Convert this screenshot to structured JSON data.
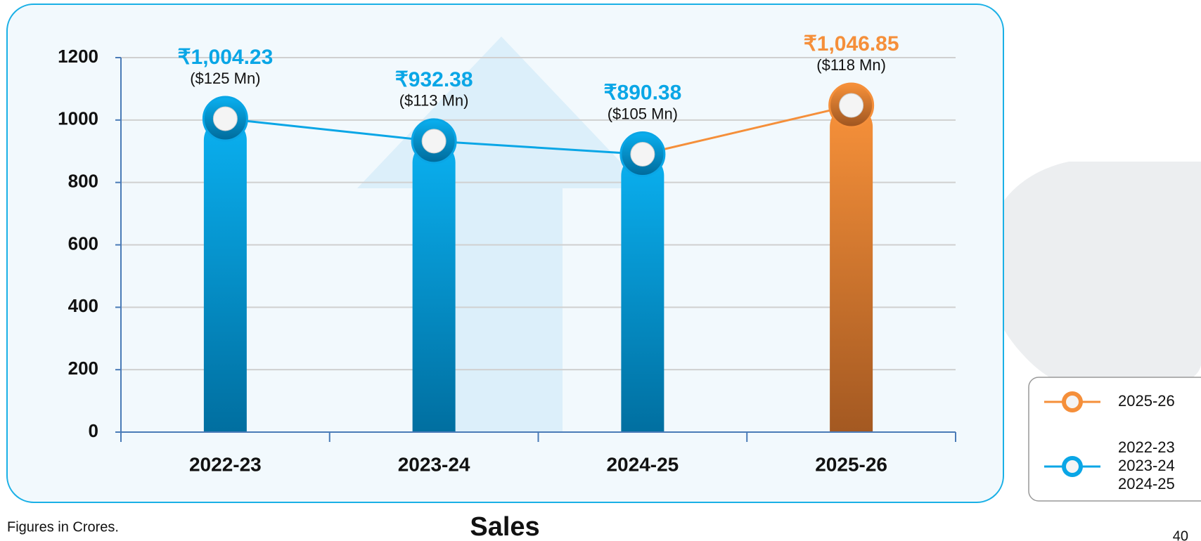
{
  "chart_data": {
    "type": "bar",
    "title": "Sales",
    "note": "Figures in Crores.",
    "page_number": "40",
    "categories": [
      "2022-23",
      "2023-24",
      "2024-25",
      "2025-26"
    ],
    "values": [
      1004.23,
      932.38,
      890.38,
      1046.85
    ],
    "value_labels": [
      "₹1,004.23",
      "₹932.38",
      "₹890.38",
      "₹1,046.85"
    ],
    "secondary_labels": [
      "($125 Mn)",
      "($113 Mn)",
      "($105 Mn)",
      "($118 Mn)"
    ],
    "colors": [
      "#0aa6e6",
      "#0aa6e6",
      "#0aa6e6",
      "#f58f3a"
    ],
    "ylim": [
      0,
      1200
    ],
    "yticks": [
      0,
      200,
      400,
      600,
      800,
      1000,
      1200
    ],
    "grid": true,
    "legend": {
      "position": "right",
      "entries": [
        {
          "labels": [
            "2025-26"
          ],
          "color": "#f58f3a"
        },
        {
          "labels": [
            "2022-23",
            "2023-24",
            "2024-25"
          ],
          "color": "#0aa6e6"
        }
      ]
    }
  }
}
